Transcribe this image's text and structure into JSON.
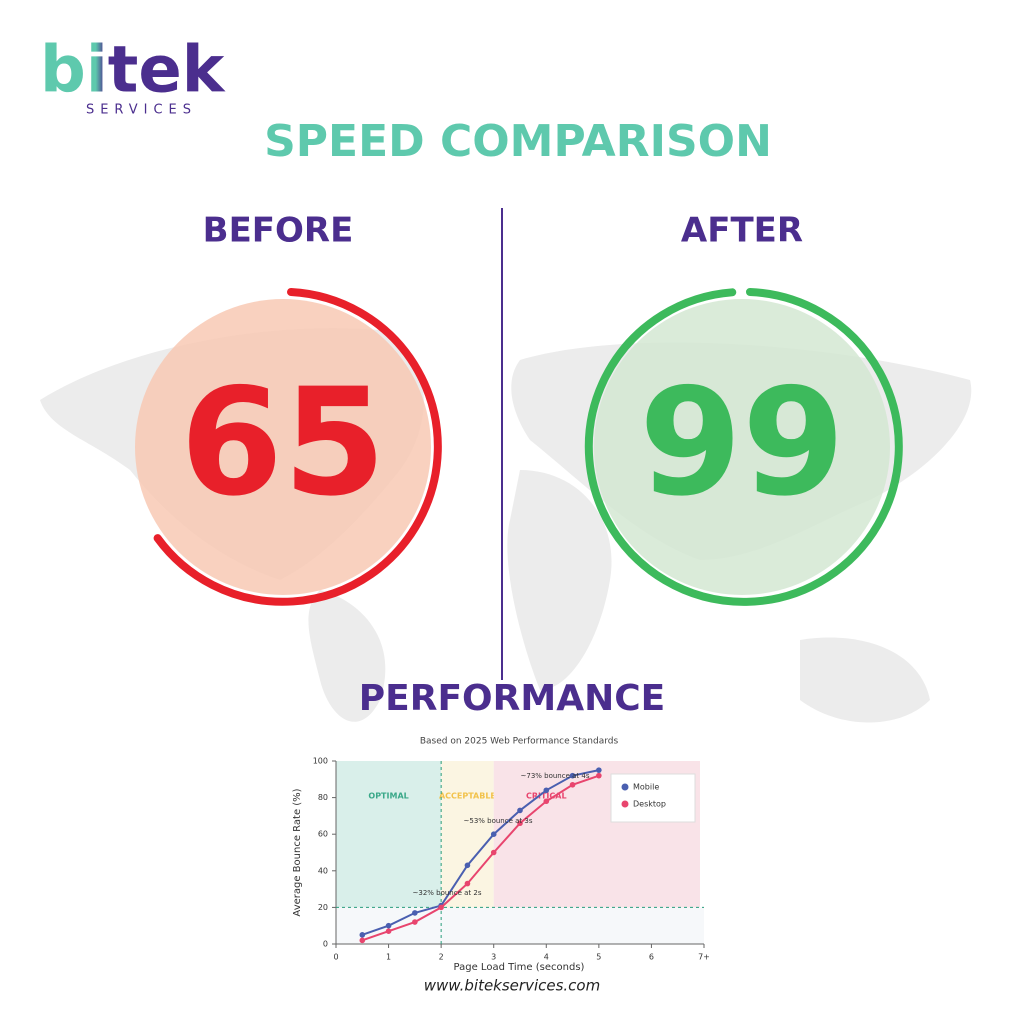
{
  "logo": {
    "name": "bitek",
    "tagline": "SERVICES"
  },
  "title": "SPEED COMPARISON",
  "before": {
    "label": "BEFORE",
    "score": 65,
    "color": "#e8202a",
    "fill": "#f8c9b4"
  },
  "after": {
    "label": "AFTER",
    "score": 99,
    "color": "#3dba5c",
    "fill": "#d3e8d2"
  },
  "section_title": "PERFORMANCE",
  "footer": "www.bitekservices.com",
  "chart_data": {
    "type": "line",
    "subtitle": "Based on 2025 Web Performance Standards",
    "x_label": "Page Load Time (seconds)",
    "y_label": "Average Bounce Rate (%)",
    "x": [
      0.5,
      1,
      1.5,
      2,
      2.5,
      3,
      3.5,
      4,
      4.5,
      5
    ],
    "series": [
      {
        "name": "Mobile",
        "color": "#4a5fb0",
        "values": [
          5,
          10,
          17,
          21,
          43,
          60,
          73,
          84,
          92,
          95
        ]
      },
      {
        "name": "Desktop",
        "color": "#e8456e",
        "values": [
          2,
          7,
          12,
          20,
          33,
          50,
          66,
          78,
          87,
          92
        ]
      }
    ],
    "zones": [
      {
        "label": "OPTIMAL",
        "from": 0,
        "to": 2,
        "color": "#d9efea",
        "text_color": "#3aa889"
      },
      {
        "label": "ACCEPTABLE",
        "from": 2,
        "to": 3,
        "color": "#fbf5e2",
        "text_color": "#f2c24a"
      },
      {
        "label": "CRITICAL",
        "from": 3,
        "to": 7,
        "color": "#f9e3e8",
        "text_color": "#e8456e"
      }
    ],
    "threshold_x": 2,
    "threshold_y": 20,
    "annotations": [
      "~32% bounce at 2s",
      "~53% bounce at 3s",
      "~73% bounce at 4s"
    ],
    "xlim": [
      0,
      7
    ],
    "xticks": [
      0,
      1,
      2,
      3,
      4,
      5,
      6,
      {
        "value": 7,
        "label": "7+"
      }
    ],
    "ylim": [
      0,
      100
    ],
    "yticks": [
      0,
      20,
      40,
      60,
      80,
      100
    ],
    "legend": "upper-right"
  }
}
